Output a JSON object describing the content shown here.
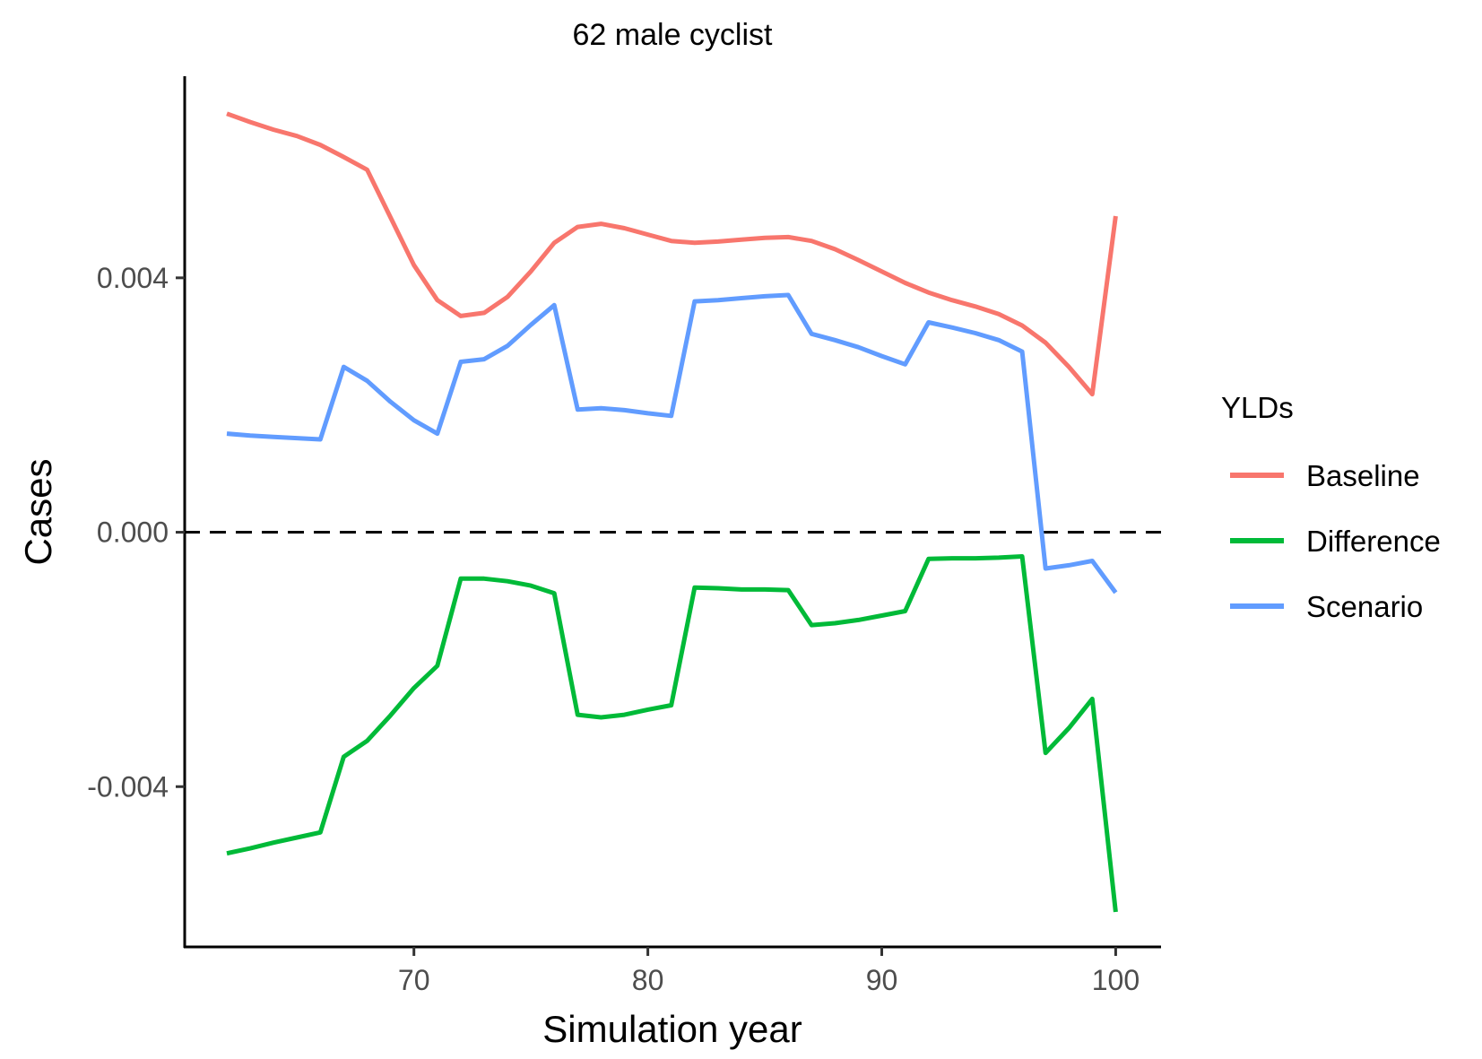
{
  "chart_data": {
    "type": "line",
    "title": "62 male cyclist",
    "xlabel": "Simulation year",
    "ylabel": "Cases",
    "xlim": [
      60.2,
      101.9
    ],
    "ylim": [
      -0.00652,
      0.00717
    ],
    "xticks": [
      70,
      80,
      90,
      100
    ],
    "xtick_labels": [
      "70",
      "80",
      "90",
      "100"
    ],
    "yticks": [
      -0.004,
      0,
      0.004
    ],
    "ytick_labels": [
      "-0.004",
      "0.000",
      "0.004"
    ],
    "reference_line": {
      "y": 0,
      "style": "dashed"
    },
    "legend": {
      "title": "YLDs",
      "position": "right"
    },
    "grid": false,
    "x": [
      62,
      63,
      64,
      65,
      66,
      67,
      68,
      69,
      70,
      71,
      72,
      73,
      74,
      75,
      76,
      77,
      78,
      79,
      80,
      81,
      82,
      83,
      84,
      85,
      86,
      87,
      88,
      89,
      90,
      91,
      92,
      93,
      94,
      95,
      96,
      97,
      98,
      99,
      100
    ],
    "series": [
      {
        "name": "Baseline",
        "color": "#F8766D",
        "values": [
          0.00658,
          0.00645,
          0.00633,
          0.00623,
          0.00609,
          0.0059,
          0.0057,
          0.00495,
          0.0042,
          0.00365,
          0.0034,
          0.00345,
          0.0037,
          0.0041,
          0.00455,
          0.0048,
          0.00485,
          0.00478,
          0.00468,
          0.00458,
          0.00455,
          0.00457,
          0.0046,
          0.00463,
          0.00464,
          0.00458,
          0.00445,
          0.00428,
          0.0041,
          0.00392,
          0.00377,
          0.00365,
          0.00355,
          0.00343,
          0.00325,
          0.00298,
          0.0026,
          0.00217,
          0.00497
        ]
      },
      {
        "name": "Difference",
        "color": "#00BA38",
        "values": [
          -0.00505,
          -0.00497,
          -0.00488,
          -0.0048,
          -0.00472,
          -0.00353,
          -0.00328,
          -0.00288,
          -0.00245,
          -0.0021,
          -0.00073,
          -0.00073,
          -0.00077,
          -0.00084,
          -0.00096,
          -0.00287,
          -0.00291,
          -0.00287,
          -0.00279,
          -0.00272,
          -0.00087,
          -0.00088,
          -0.0009,
          -0.0009,
          -0.00091,
          -0.00146,
          -0.00143,
          -0.00138,
          -0.00131,
          -0.00124,
          -0.00042,
          -0.00041,
          -0.00041,
          -0.0004,
          -0.00038,
          -0.00347,
          -0.00308,
          -0.00262,
          -0.00597
        ]
      },
      {
        "name": "Scenario",
        "color": "#619CFF",
        "values": [
          0.00155,
          0.00152,
          0.0015,
          0.00148,
          0.00146,
          0.0026,
          0.00238,
          0.00205,
          0.00176,
          0.00155,
          0.00268,
          0.00272,
          0.00293,
          0.00326,
          0.00357,
          0.00193,
          0.00195,
          0.00192,
          0.00187,
          0.00183,
          0.00363,
          0.00365,
          0.00368,
          0.00371,
          0.00373,
          0.00312,
          0.00302,
          0.00291,
          0.00277,
          0.00264,
          0.0033,
          0.00322,
          0.00313,
          0.00302,
          0.00284,
          -0.00057,
          -0.00052,
          -0.00045,
          -0.00095
        ]
      }
    ]
  }
}
